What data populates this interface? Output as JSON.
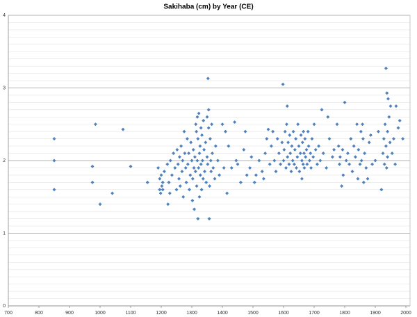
{
  "chart_data": {
    "type": "scatter",
    "title": "Sakihaba (cm) by Year (CE)",
    "color": "#4f81bd",
    "x": [
      850,
      850,
      850,
      975,
      975,
      985,
      1000,
      1040,
      1075,
      1100,
      1155,
      1190,
      1195,
      1195,
      1198,
      1200,
      1202,
      1205,
      1205,
      1210,
      1220,
      1222,
      1225,
      1228,
      1230,
      1235,
      1240,
      1245,
      1250,
      1252,
      1255,
      1258,
      1260,
      1262,
      1265,
      1268,
      1270,
      1272,
      1275,
      1277,
      1280,
      1282,
      1285,
      1287,
      1290,
      1292,
      1295,
      1297,
      1300,
      1302,
      1303,
      1305,
      1307,
      1308,
      1310,
      1312,
      1313,
      1315,
      1316,
      1318,
      1318,
      1320,
      1320,
      1322,
      1323,
      1325,
      1325,
      1327,
      1328,
      1330,
      1330,
      1332,
      1333,
      1335,
      1337,
      1338,
      1340,
      1342,
      1345,
      1347,
      1350,
      1350,
      1352,
      1353,
      1355,
      1355,
      1357,
      1358,
      1360,
      1362,
      1363,
      1365,
      1367,
      1370,
      1375,
      1378,
      1385,
      1390,
      1400,
      1405,
      1410,
      1415,
      1420,
      1430,
      1440,
      1445,
      1450,
      1460,
      1470,
      1475,
      1480,
      1490,
      1495,
      1505,
      1510,
      1520,
      1530,
      1535,
      1540,
      1545,
      1550,
      1555,
      1560,
      1565,
      1570,
      1575,
      1580,
      1585,
      1590,
      1595,
      1598,
      1600,
      1602,
      1605,
      1608,
      1610,
      1612,
      1613,
      1615,
      1618,
      1620,
      1622,
      1625,
      1627,
      1630,
      1632,
      1635,
      1637,
      1640,
      1642,
      1645,
      1647,
      1650,
      1652,
      1655,
      1657,
      1660,
      1660,
      1662,
      1664,
      1665,
      1667,
      1668,
      1670,
      1672,
      1675,
      1677,
      1680,
      1682,
      1685,
      1688,
      1690,
      1693,
      1697,
      1700,
      1705,
      1710,
      1715,
      1720,
      1725,
      1730,
      1740,
      1745,
      1750,
      1760,
      1765,
      1775,
      1780,
      1783,
      1785,
      1790,
      1793,
      1795,
      1800,
      1805,
      1810,
      1815,
      1820,
      1825,
      1830,
      1835,
      1840,
      1843,
      1845,
      1850,
      1853,
      1855,
      1858,
      1860,
      1862,
      1865,
      1870,
      1875,
      1880,
      1885,
      1890,
      1900,
      1910,
      1920,
      1925,
      1928,
      1930,
      1932,
      1935,
      1935,
      1937,
      1938,
      1940,
      1940,
      1942,
      1945,
      1948,
      1950,
      1955,
      1960,
      1965,
      1968,
      1975,
      1980,
      1990
    ],
    "values": [
      2.3,
      2.0,
      1.6,
      1.92,
      1.7,
      2.5,
      1.4,
      1.55,
      2.43,
      1.92,
      1.7,
      1.9,
      1.6,
      1.75,
      1.55,
      1.8,
      1.65,
      1.6,
      1.7,
      1.85,
      1.95,
      1.4,
      1.7,
      1.55,
      2.0,
      1.8,
      2.1,
      1.9,
      1.6,
      2.15,
      1.95,
      1.75,
      2.05,
      1.65,
      2.2,
      1.85,
      2.0,
      1.5,
      2.4,
      2.1,
      1.9,
      1.7,
      2.3,
      1.95,
      2.1,
      1.6,
      1.8,
      2.25,
      2.0,
      1.45,
      1.75,
      2.15,
      1.9,
      1.33,
      2.05,
      1.85,
      2.5,
      2.4,
      1.65,
      2.6,
      2.0,
      1.2,
      2.3,
      1.9,
      2.65,
      1.5,
      2.1,
      2.2,
      1.8,
      2.45,
      1.95,
      1.6,
      2.35,
      2.0,
      1.75,
      2.55,
      2.15,
      1.85,
      2.25,
      1.7,
      2.6,
      2.05,
      1.95,
      3.13,
      2.7,
      2.45,
      1.2,
      1.65,
      2.3,
      2.0,
      1.85,
      2.5,
      2.1,
      1.9,
      1.75,
      2.2,
      2.0,
      1.8,
      2.5,
      1.9,
      2.4,
      1.55,
      2.2,
      1.9,
      2.53,
      2.0,
      1.95,
      1.7,
      2.15,
      2.4,
      1.8,
      1.9,
      2.05,
      1.7,
      1.8,
      2.0,
      1.85,
      1.75,
      2.1,
      2.3,
      2.43,
      1.95,
      2.2,
      2.4,
      2.0,
      1.85,
      2.3,
      2.1,
      1.95,
      2.25,
      3.05,
      2.0,
      2.15,
      2.4,
      1.9,
      2.5,
      2.75,
      2.05,
      2.25,
      1.95,
      2.35,
      2.1,
      1.85,
      2.2,
      2.0,
      2.4,
      1.95,
      2.15,
      2.3,
      1.9,
      2.05,
      2.5,
      2.2,
      1.85,
      2.1,
      2.35,
      2.0,
      1.75,
      2.25,
      1.95,
      2.4,
      2.1,
      1.9,
      2.3,
      2.05,
      2.15,
      1.95,
      2.4,
      2.2,
      2.0,
      2.1,
      1.9,
      2.3,
      2.05,
      2.5,
      2.15,
      1.95,
      2.2,
      2.0,
      2.7,
      2.1,
      1.9,
      2.6,
      2.3,
      2.05,
      2.15,
      2.5,
      2.2,
      1.95,
      2.05,
      1.65,
      2.15,
      1.8,
      2.8,
      2.0,
      2.1,
      1.95,
      2.3,
      1.85,
      2.2,
      2.05,
      2.5,
      1.75,
      2.15,
      1.95,
      2.4,
      2.0,
      2.5,
      2.3,
      1.7,
      2.1,
      1.9,
      1.75,
      2.25,
      2.35,
      1.95,
      2.0,
      2.4,
      1.6,
      2.1,
      2.3,
      1.95,
      2.5,
      3.27,
      2.2,
      1.9,
      2.93,
      2.4,
      2.05,
      2.85,
      2.6,
      2.25,
      2.75,
      2.1,
      2.3,
      1.95,
      2.75,
      2.45,
      2.55,
      2.3
    ],
    "xlim": [
      700,
      2000
    ],
    "ylim": [
      0,
      4
    ],
    "xticks": [
      700,
      800,
      900,
      1000,
      1100,
      1200,
      1300,
      1400,
      1500,
      1600,
      1700,
      1800,
      1900,
      2000
    ],
    "yticks": [
      0,
      1,
      2,
      3,
      4
    ],
    "minor_yticks": [
      0.1,
      0.2,
      0.3,
      0.4,
      0.5,
      0.6,
      0.7,
      0.8,
      0.9,
      1.1,
      1.2,
      1.3,
      1.4,
      1.5,
      1.6,
      1.7,
      1.8,
      1.9,
      2.1,
      2.2,
      2.3,
      2.4,
      2.5,
      2.6,
      2.7,
      2.8,
      2.9,
      3.1,
      3.2,
      3.3,
      3.4,
      3.5,
      3.6,
      3.7,
      3.8,
      3.9
    ],
    "grid": true
  }
}
